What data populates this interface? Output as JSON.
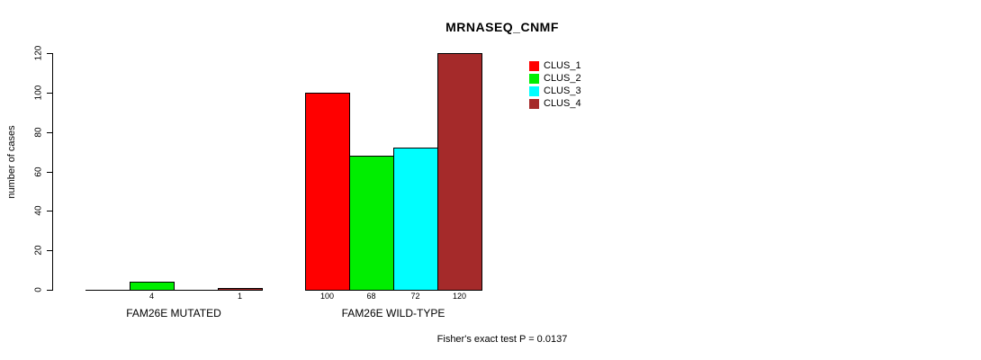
{
  "chart_data": {
    "type": "bar",
    "title": "MRNASEQ_CNMF",
    "ylabel": "number of cases",
    "xlabel": "",
    "ylim": [
      0,
      120
    ],
    "yticks": [
      0,
      20,
      40,
      60,
      80,
      100,
      120
    ],
    "grid": false,
    "annotation": "Fisher's exact test P = 0.0137",
    "legend": {
      "position": "top-right",
      "entries": [
        {
          "name": "CLUS_1",
          "color": "#ff0000"
        },
        {
          "name": "CLUS_2",
          "color": "#00ee00"
        },
        {
          "name": "CLUS_3",
          "color": "#00ffff"
        },
        {
          "name": "CLUS_4",
          "color": "#a52a2a"
        }
      ]
    },
    "groups": [
      {
        "label": "FAM26E MUTATED",
        "bars": [
          {
            "series": "CLUS_1",
            "value": 0,
            "value_label": "",
            "color": "#ff0000"
          },
          {
            "series": "CLUS_2",
            "value": 4,
            "value_label": "4",
            "color": "#00ee00"
          },
          {
            "series": "CLUS_3",
            "value": 0,
            "value_label": "",
            "color": "#00ffff"
          },
          {
            "series": "CLUS_4",
            "value": 1,
            "value_label": "1",
            "color": "#a52a2a"
          }
        ]
      },
      {
        "label": "FAM26E WILD-TYPE",
        "bars": [
          {
            "series": "CLUS_1",
            "value": 100,
            "value_label": "100",
            "color": "#ff0000"
          },
          {
            "series": "CLUS_2",
            "value": 68,
            "value_label": "68",
            "color": "#00ee00"
          },
          {
            "series": "CLUS_3",
            "value": 72,
            "value_label": "72",
            "color": "#00ffff"
          },
          {
            "series": "CLUS_4",
            "value": 120,
            "value_label": "120",
            "color": "#a52a2a"
          }
        ]
      }
    ]
  }
}
